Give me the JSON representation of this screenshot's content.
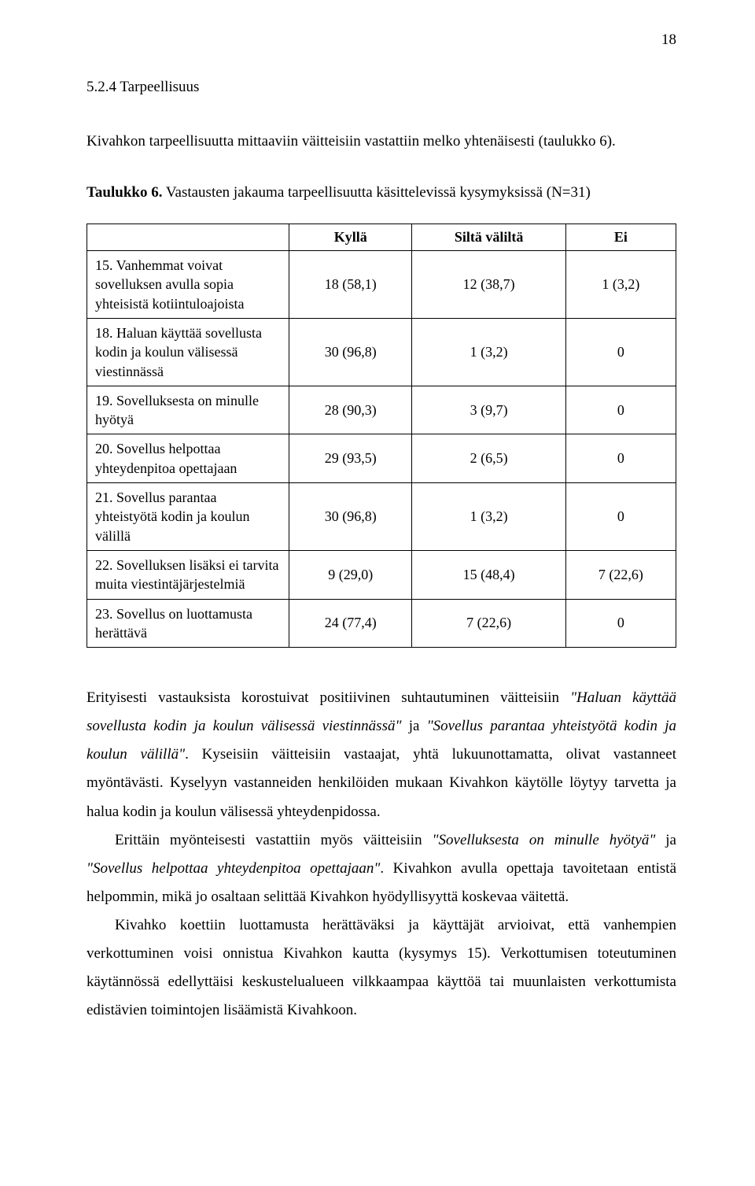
{
  "page_number": "18",
  "section_heading": "5.2.4   Tarpeellisuus",
  "intro": "Kivahkon tarpeellisuutta mittaaviin väitteisiin vastattiin melko yhtenäisesti (taulukko 6).",
  "table_caption_bold": "Taulukko 6.",
  "table_caption_rest": " Vastausten jakauma tarpeellisuutta käsittelevissä kysymyksissä (N=31)",
  "table": {
    "headers": [
      "",
      "Kyllä",
      "Siltä väliltä",
      "Ei"
    ],
    "rows": [
      {
        "label": "15. Vanhemmat voivat sovelluksen avulla sopia yhteisistä kotiintuloajoista",
        "c1": "18 (58,1)",
        "c2": "12 (38,7)",
        "c3": "1 (3,2)"
      },
      {
        "label": "18. Haluan käyttää sovellusta kodin ja koulun välisessä viestinnässä",
        "c1": "30 (96,8)",
        "c2": "1 (3,2)",
        "c3": "0"
      },
      {
        "label": "19. Sovelluksesta on minulle hyötyä",
        "c1": "28 (90,3)",
        "c2": "3 (9,7)",
        "c3": "0"
      },
      {
        "label": "20. Sovellus helpottaa yhteydenpitoa opettajaan",
        "c1": "29 (93,5)",
        "c2": "2 (6,5)",
        "c3": "0"
      },
      {
        "label": "21. Sovellus parantaa yhteistyötä kodin ja koulun välillä",
        "c1": "30 (96,8)",
        "c2": "1 (3,2)",
        "c3": "0"
      },
      {
        "label": "22. Sovelluksen lisäksi ei tarvita muita viestintäjärjestelmiä",
        "c1": "9 (29,0)",
        "c2": "15 (48,4)",
        "c3": "7 (22,6)"
      },
      {
        "label": "23. Sovellus on luottamusta herättävä",
        "c1": "24 (77,4)",
        "c2": "7 (22,6)",
        "c3": "0"
      }
    ]
  },
  "p1_a": "Erityisesti vastauksista korostuivat positiivinen suhtautuminen väitteisiin ",
  "p1_i1": "\"Haluan käyttää sovellusta kodin ja koulun välisessä viestinnässä\"",
  "p1_b": " ja ",
  "p1_i2": "\"Sovellus parantaa yhteistyötä kodin ja koulun välillä\"",
  "p1_c": ". Kyseisiin väitteisiin vastaajat, yhtä lukuunottamatta, olivat vastanneet myöntävästi. Kyselyyn vastanneiden henkilöiden mukaan Kivahkon käytölle löytyy tarvetta ja halua kodin ja koulun välisessä yhteydenpidossa.",
  "p2_a": "Erittäin myönteisesti vastattiin myös väitteisiin ",
  "p2_i1": "\"Sovelluksesta on minulle hyötyä\"",
  "p2_b": " ja ",
  "p2_i2": "\"Sovellus helpottaa yhteydenpitoa opettajaan\"",
  "p2_c": ". Kivahkon avulla opettaja tavoitetaan entistä helpommin, mikä jo osaltaan selittää Kivahkon hyödyllisyyttä koskevaa väitettä.",
  "p3": "Kivahko koettiin luottamusta herättäväksi ja käyttäjät arvioivat, että vanhempien verkottuminen voisi onnistua Kivahkon kautta (kysymys 15). Verkottumisen toteutuminen käytännössä edellyttäisi keskustelualueen vilkkaampaa käyttöä tai muunlaisten verkottumista edistävien toimintojen lisäämistä Kivahkoon."
}
